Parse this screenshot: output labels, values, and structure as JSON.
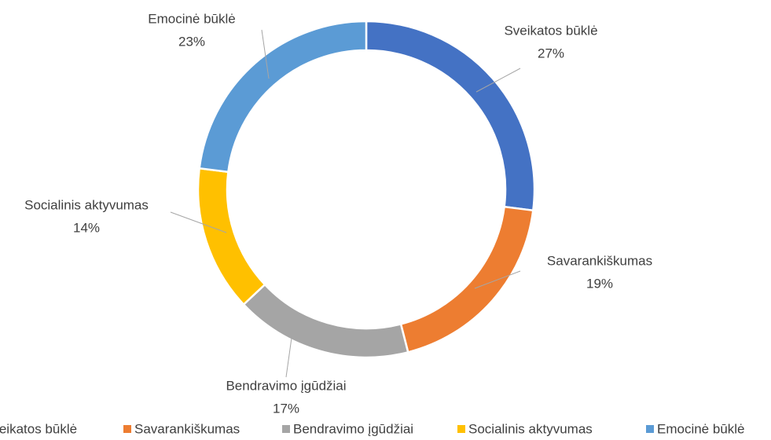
{
  "chart_data": {
    "type": "donut",
    "categories": [
      "Sveikatos būklė",
      "Savarankiškumas",
      "Bendravimo įgūdžiai",
      "Socialinis aktyvumas",
      "Emocinė būklė"
    ],
    "values": [
      27,
      19,
      17,
      14,
      23
    ],
    "value_labels": [
      "27%",
      "19%",
      "17%",
      "14%",
      "23%"
    ],
    "colors": [
      "#4472c4",
      "#ed7d31",
      "#a5a5a5",
      "#ffc000",
      "#5b9bd5"
    ],
    "legend": "bottom"
  }
}
